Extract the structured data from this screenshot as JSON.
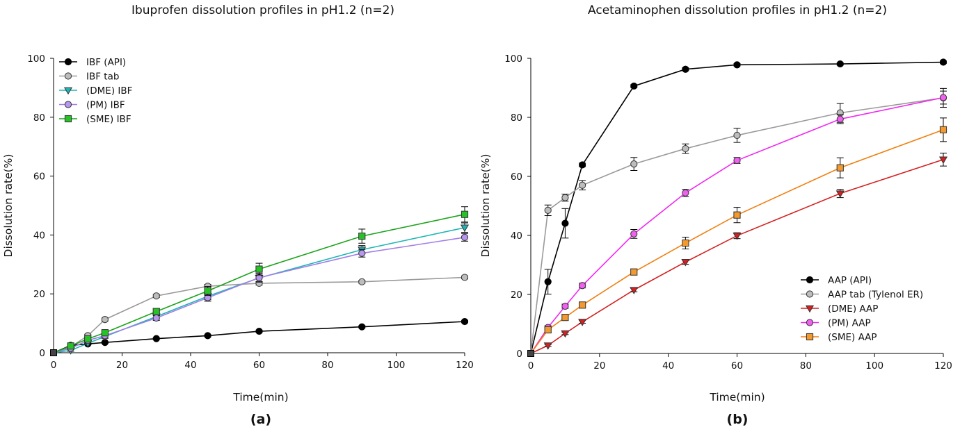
{
  "chart_data": [
    {
      "type": "line",
      "panel_label": "(a)",
      "title": "Ibuprofen dissolution profiles in pH1.2 (n=2)",
      "xlabel": "Time(min)",
      "ylabel": "Dissolution rate(%)",
      "xlim": [
        0,
        120
      ],
      "ylim": [
        0,
        100
      ],
      "xticks": [
        0,
        20,
        40,
        60,
        80,
        100,
        120
      ],
      "yticks": [
        0,
        20,
        40,
        60,
        80,
        100
      ],
      "legend_position": "top-left",
      "x": [
        0,
        5,
        10,
        15,
        30,
        45,
        60,
        90,
        120
      ],
      "series": [
        {
          "name": "IBF (API)",
          "marker": "circle",
          "color": "#000000",
          "fill": "#000000",
          "values": [
            0,
            2.5,
            3,
            3.5,
            4.8,
            5.8,
            7.3,
            8.8,
            10.6
          ],
          "errors": [
            0,
            0.3,
            0.3,
            0.3,
            0.3,
            0.3,
            0.4,
            0.4,
            0.4
          ]
        },
        {
          "name": "IBF tab",
          "marker": "circle",
          "color": "#9a9a9a",
          "fill": "#bdbdbd",
          "values": [
            0,
            2,
            5.8,
            11.3,
            19.3,
            22.6,
            23.6,
            24.1,
            25.6
          ],
          "errors": [
            0,
            0.3,
            0.5,
            0.5,
            0.5,
            0.6,
            0.6,
            0.5,
            0.5
          ]
        },
        {
          "name": "(DME) IBF",
          "marker": "triangle-down",
          "color": "#1fb5b5",
          "fill": "#1fb5b5",
          "values": [
            0,
            0.8,
            3.2,
            5.5,
            12.3,
            19.2,
            25.4,
            35.0,
            42.5
          ],
          "errors": [
            0,
            0.3,
            0.5,
            0.6,
            0.8,
            1.2,
            1.4,
            1.4,
            1.6
          ]
        },
        {
          "name": "(PM) IBF",
          "marker": "circle",
          "color": "#a27ee6",
          "fill": "#b796ef",
          "values": [
            0,
            1.5,
            4.2,
            5.8,
            11.8,
            18.7,
            25.5,
            33.8,
            39.2
          ],
          "errors": [
            0,
            0.3,
            0.5,
            0.5,
            0.8,
            1.2,
            1.4,
            1.3,
            1.3
          ]
        },
        {
          "name": "(SME) IBF",
          "marker": "square",
          "color": "#1aa31a",
          "fill": "#27c227",
          "values": [
            0,
            2.3,
            4.7,
            6.8,
            14.0,
            21.0,
            28.4,
            39.6,
            47.0
          ],
          "errors": [
            0,
            0.3,
            0.5,
            0.6,
            1.0,
            1.5,
            2.0,
            2.4,
            2.6
          ]
        }
      ]
    },
    {
      "type": "line",
      "panel_label": "(b)",
      "title": "Acetaminophen dissolution profiles in pH1.2 (n=2)",
      "xlabel": "Time(min)",
      "ylabel": "Dissolution rate(%)",
      "xlim": [
        0,
        120
      ],
      "ylim": [
        0,
        100
      ],
      "xticks": [
        0,
        20,
        40,
        60,
        80,
        100,
        120
      ],
      "yticks": [
        0,
        20,
        40,
        60,
        80,
        100
      ],
      "legend_position": "bottom-right",
      "x": [
        0,
        5,
        10,
        15,
        30,
        45,
        60,
        90,
        120
      ],
      "series": [
        {
          "name": "AAP (API)",
          "marker": "circle",
          "color": "#000000",
          "fill": "#000000",
          "values": [
            0,
            24.3,
            44.1,
            63.9,
            90.6,
            96.3,
            97.8,
            98.1,
            98.7
          ],
          "errors": [
            0,
            4.2,
            5.0,
            0.6,
            0.5,
            0.5,
            0.4,
            0.4,
            0.4
          ]
        },
        {
          "name": "AAP tab (Tylenol ER)",
          "marker": "circle",
          "color": "#9a9a9a",
          "fill": "#bdbdbd",
          "values": [
            0,
            48.5,
            52.8,
            57.0,
            64.2,
            69.4,
            73.9,
            81.5,
            86.6
          ],
          "errors": [
            0,
            1.8,
            1.2,
            1.6,
            2.2,
            1.6,
            2.4,
            3.2,
            3.2
          ]
        },
        {
          "name": "(DME) AAP",
          "marker": "triangle-down",
          "color": "#d42020",
          "fill": "#d42020",
          "values": [
            0,
            2.7,
            6.8,
            10.7,
            21.5,
            31.0,
            39.9,
            54.2,
            65.7
          ],
          "errors": [
            0,
            0.3,
            0.4,
            0.5,
            0.6,
            0.8,
            1.0,
            1.4,
            2.2
          ]
        },
        {
          "name": "(PM) AAP",
          "marker": "circle",
          "color": "#f028f0",
          "fill": "#f060f0",
          "values": [
            0,
            8.8,
            16.0,
            23.0,
            40.5,
            54.4,
            65.4,
            79.4,
            86.7
          ],
          "errors": [
            0,
            0.6,
            0.7,
            0.8,
            1.5,
            1.2,
            1.0,
            1.5,
            2.2
          ]
        },
        {
          "name": "(SME) AAP",
          "marker": "square",
          "color": "#f07f10",
          "fill": "#f29a30",
          "values": [
            0,
            8.0,
            12.2,
            16.4,
            27.6,
            37.4,
            46.9,
            62.9,
            75.8
          ],
          "errors": [
            0,
            0.8,
            1.0,
            1.0,
            1.0,
            2.0,
            2.6,
            3.4,
            4.0
          ]
        }
      ]
    }
  ]
}
